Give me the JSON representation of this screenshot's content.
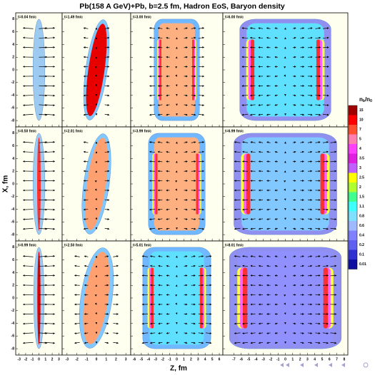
{
  "title": "Pb(158 A GeV)+Pb, b=2.5 fm, Hadron EoS, Baryon density",
  "y_label": "X, fm",
  "x_label": "Z, fm",
  "ylim": [
    -9,
    9
  ],
  "yticks": [
    8,
    6,
    4,
    2,
    0,
    -2,
    -4,
    -6,
    -8
  ],
  "columns": [
    {
      "xlim": [
        -3.5,
        3.5
      ],
      "xticks": [
        -3,
        -2,
        -1,
        0,
        1,
        2,
        3
      ],
      "times": [
        "t=0.04 fm/c",
        "t=0.50 fm/c",
        "t=0.99 fm/c"
      ]
    },
    {
      "xlim": [
        -3.5,
        3.5
      ],
      "xticks": [
        -3,
        -2,
        -1,
        0,
        1,
        2,
        3
      ],
      "times": [
        "t=1.49 fm/c",
        "t=2.01 fm/c",
        "t=2.50 fm/c"
      ]
    },
    {
      "xlim": [
        -6.5,
        6.5
      ],
      "xticks": [
        -6,
        -5,
        -4,
        -3,
        -2,
        -1,
        0,
        1,
        2,
        3,
        4,
        5,
        6
      ],
      "times": [
        "t=3.00 fm/c",
        "t=3.99 fm/c",
        "t=5.01 fm/c"
      ]
    },
    {
      "xlim": [
        -8.5,
        8.5
      ],
      "xticks": [
        -7,
        -6,
        -5,
        -4,
        -3,
        -2,
        -1,
        0,
        1,
        2,
        3,
        4,
        5,
        6,
        7,
        8
      ],
      "times": [
        "t=6.00 fm/c",
        "t=6.99 fm/c",
        "t=8.01 fm/c"
      ]
    }
  ],
  "colorbar": {
    "label": [
      "n",
      "b",
      "/n",
      "0"
    ],
    "ticks": [
      15,
      10,
      7,
      5,
      4,
      3.5,
      3,
      2.5,
      2,
      1.5,
      1.1,
      0.8,
      0.6,
      0.4,
      0.2,
      0.1,
      0.01
    ],
    "colors": [
      "#a00000",
      "#ff0000",
      "#ff5030",
      "#ff80b0",
      "#ff40ff",
      "#e020e0",
      "#c060ff",
      "#ffff00",
      "#b0ff30",
      "#40ff90",
      "#40ffff",
      "#80e0ff",
      "#a0b8ff",
      "#8080ff",
      "#6060f0",
      "#3030d0",
      "#1010a0"
    ]
  }
}
